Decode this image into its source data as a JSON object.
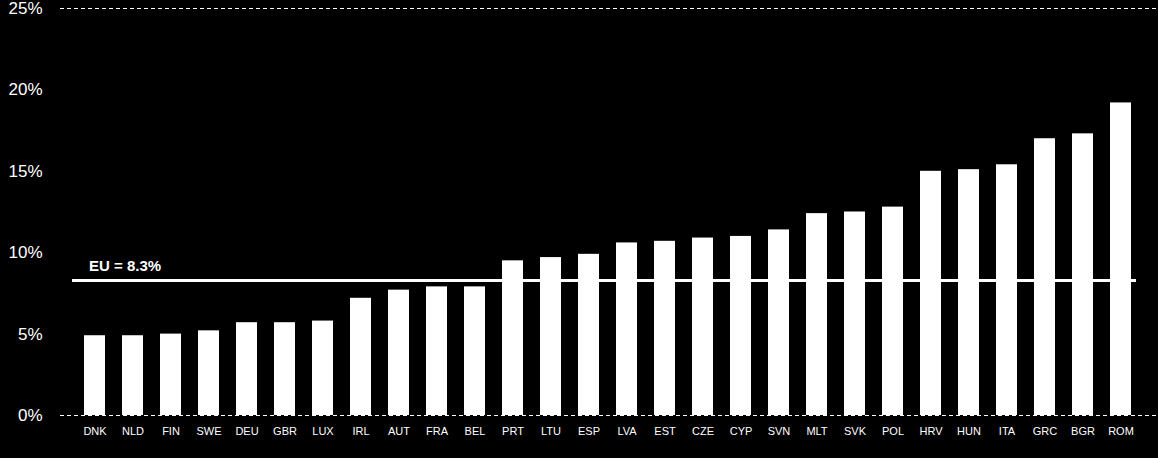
{
  "chart_data": {
    "type": "bar",
    "categories": [
      "DNK",
      "NLD",
      "FIN",
      "SWE",
      "DEU",
      "GBR",
      "LUX",
      "IRL",
      "AUT",
      "FRA",
      "BEL",
      "PRT",
      "LTU",
      "ESP",
      "LVA",
      "EST",
      "CZE",
      "CYP",
      "SVN",
      "MLT",
      "SVK",
      "POL",
      "HRV",
      "HUN",
      "ITA",
      "GRC",
      "BGR",
      "ROM"
    ],
    "values": [
      4.9,
      4.9,
      5.0,
      5.2,
      5.7,
      5.7,
      5.8,
      7.2,
      7.7,
      7.9,
      7.9,
      9.5,
      9.7,
      9.9,
      10.6,
      10.7,
      10.9,
      11.0,
      11.4,
      12.4,
      12.5,
      12.8,
      15.0,
      15.1,
      15.4,
      17.0,
      17.3,
      19.2
    ],
    "color": "#ffffff",
    "ylim": [
      0,
      25
    ],
    "yticks": [
      {
        "value": 0,
        "label": "0%"
      },
      {
        "value": 5,
        "label": "5%"
      },
      {
        "value": 10,
        "label": "10%"
      },
      {
        "value": 15,
        "label": "15%"
      },
      {
        "value": 20,
        "label": "20%"
      },
      {
        "value": 25,
        "label": "25%"
      }
    ],
    "grid": false,
    "annotations": [
      {
        "text": "EU = 8.3%",
        "y": 8.3
      }
    ]
  }
}
